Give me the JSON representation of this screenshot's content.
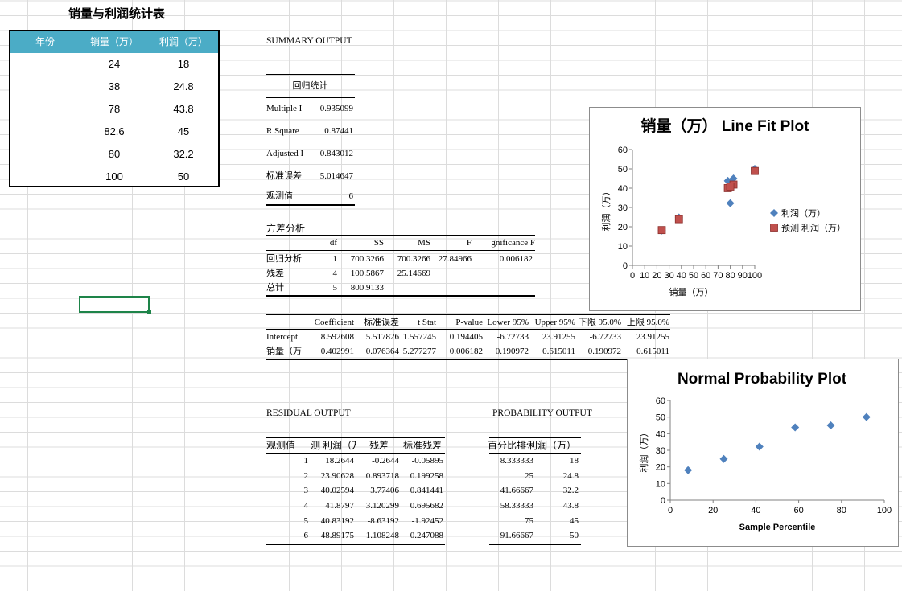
{
  "left_table": {
    "title": "销量与利润统计表",
    "headers": [
      "年份",
      "销量（万）",
      "利润（万）"
    ],
    "rows": [
      {
        "year": "",
        "sales": "24",
        "profit": "18"
      },
      {
        "year": "",
        "sales": "38",
        "profit": "24.8"
      },
      {
        "year": "",
        "sales": "78",
        "profit": "43.8"
      },
      {
        "year": "",
        "sales": "82.6",
        "profit": "45"
      },
      {
        "year": "",
        "sales": "80",
        "profit": "32.2"
      },
      {
        "year": "",
        "sales": "100",
        "profit": "50"
      }
    ]
  },
  "summary": {
    "title": "SUMMARY OUTPUT",
    "reg_stats_header": "回归统计",
    "reg_stats": [
      {
        "label": "Multiple I",
        "value": "0.935099"
      },
      {
        "label": "R Square",
        "value": "0.87441"
      },
      {
        "label": "Adjusted I",
        "value": "0.843012"
      },
      {
        "label": "标准误差",
        "value": "5.014647"
      },
      {
        "label": "观测值",
        "value": "6"
      }
    ],
    "anova_title": "方差分析",
    "anova_headers": [
      "df",
      "SS",
      "MS",
      "F",
      "gnificance F"
    ],
    "anova_rows": [
      {
        "label": "回归分析",
        "df": "1",
        "ss": "700.3266",
        "ms": "700.3266",
        "f": "27.84966",
        "sig": "0.006182"
      },
      {
        "label": "残差",
        "df": "4",
        "ss": "100.5867",
        "ms": "25.14669",
        "f": "",
        "sig": ""
      },
      {
        "label": "总计",
        "df": "5",
        "ss": "800.9133",
        "ms": "",
        "f": "",
        "sig": ""
      }
    ],
    "coef_headers": [
      "Coefficient",
      "标准误差",
      "t Stat",
      "P-value",
      "Lower 95%",
      "Upper 95%",
      "下限 95.0%",
      "上限 95.0%"
    ],
    "coef_rows": [
      {
        "label": "Intercept",
        "values": [
          "8.592608",
          "5.517826",
          "1.557245",
          "0.194405",
          "-6.72733",
          "23.91255",
          "-6.72733",
          "23.91255"
        ]
      },
      {
        "label": "销量（万",
        "values": [
          "0.402991",
          "0.076364",
          "5.277277",
          "0.006182",
          "0.190972",
          "0.615011",
          "0.190972",
          "0.615011"
        ]
      }
    ]
  },
  "residual": {
    "title": "RESIDUAL OUTPUT",
    "headers": [
      "观测值",
      "测 利润（万",
      "残差",
      "标准残差"
    ],
    "rows": [
      [
        "1",
        "18.2644",
        "-0.2644",
        "-0.05895"
      ],
      [
        "2",
        "23.90628",
        "0.893718",
        "0.199258"
      ],
      [
        "3",
        "40.02594",
        "3.77406",
        "0.841441"
      ],
      [
        "4",
        "41.8797",
        "3.120299",
        "0.695682"
      ],
      [
        "5",
        "40.83192",
        "-8.63192",
        "-1.92452"
      ],
      [
        "6",
        "48.89175",
        "1.108248",
        "0.247088"
      ]
    ]
  },
  "probability": {
    "title": "PROBABILITY OUTPUT",
    "headers": [
      "百分比排位",
      "利润（万）"
    ],
    "rows": [
      [
        "8.333333",
        "18"
      ],
      [
        "25",
        "24.8"
      ],
      [
        "41.66667",
        "32.2"
      ],
      [
        "58.33333",
        "43.8"
      ],
      [
        "75",
        "45"
      ],
      [
        "91.66667",
        "50"
      ]
    ]
  },
  "chart_data": [
    {
      "type": "scatter",
      "title": "销量（万） Line Fit  Plot",
      "xlabel": "销量（万）",
      "ylabel": "利润（万）",
      "xlim": [
        0,
        100
      ],
      "ylim": [
        0,
        60
      ],
      "x_ticks": [
        "0",
        "10",
        "20",
        "30",
        "40",
        "50",
        "60",
        "70",
        "80",
        "90",
        "100"
      ],
      "y_ticks": [
        "0",
        "10",
        "20",
        "30",
        "40",
        "50",
        "60"
      ],
      "grid": false,
      "legend": "right",
      "series": [
        {
          "name": "利润（万）",
          "color": "#4f81bd",
          "marker": "diamond",
          "x": [
            24,
            38,
            78,
            82.6,
            80,
            100
          ],
          "y": [
            18,
            24.8,
            43.8,
            45,
            32.2,
            50
          ]
        },
        {
          "name": "预测 利润（万）",
          "color": "#c0504d",
          "marker": "square",
          "x": [
            24,
            38,
            78,
            82.6,
            80,
            100
          ],
          "y": [
            18.2644,
            23.90628,
            40.02594,
            41.8797,
            40.83192,
            48.89175
          ]
        }
      ]
    },
    {
      "type": "scatter",
      "title": "Normal Probability Plot",
      "xlabel": "Sample Percentile",
      "ylabel": "利润（万）",
      "xlim": [
        0,
        100
      ],
      "ylim": [
        0,
        60
      ],
      "x_ticks": [
        "0",
        "20",
        "40",
        "60",
        "80",
        "100"
      ],
      "y_ticks": [
        "0",
        "10",
        "20",
        "30",
        "40",
        "50",
        "60"
      ],
      "grid": false,
      "series": [
        {
          "color": "#4f81bd",
          "marker": "diamond",
          "x": [
            8.333333,
            25,
            41.66667,
            58.33333,
            75,
            91.66667
          ],
          "y": [
            18,
            24.8,
            32.2,
            43.8,
            45,
            50
          ]
        }
      ]
    }
  ]
}
